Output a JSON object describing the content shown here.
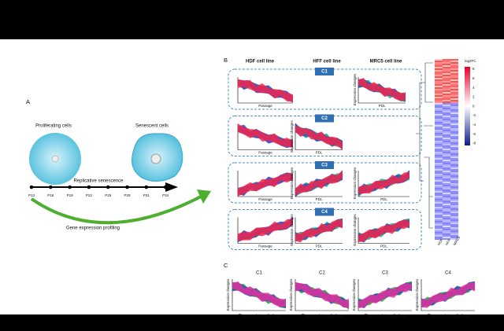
{
  "panel_a": {
    "label": "A",
    "proliferating": "Proliferating cells",
    "senescent": "Senescent cells",
    "timeline": "Replicative senescence",
    "passages": [
      "P13",
      "P16",
      "P19",
      "P22",
      "P25",
      "P28",
      "P31",
      "P34"
    ],
    "profiling": "Gene expression profiling"
  },
  "panel_b": {
    "label": "B",
    "columns": [
      "HDF cell line",
      "HFF cell line",
      "MRC5 cell line"
    ],
    "clusters": [
      "C1",
      "C2",
      "C3",
      "C4"
    ],
    "x_passage": "Passage",
    "x_pdl": "PDL",
    "y_label": "Expression changes",
    "legend_title": "log2FC",
    "legend_ticks": [
      "8",
      "6",
      "4",
      "2",
      "0",
      "-2",
      "-4",
      "-6",
      "-8"
    ],
    "heatmap_columns": [
      "HDF",
      "HFF",
      "MRC5"
    ]
  },
  "panel_c": {
    "label": "C",
    "titles": [
      "C1",
      "C2",
      "C3",
      "C4"
    ],
    "x_label": "Day post-irradiation",
    "y_label": "Expression changes"
  }
}
